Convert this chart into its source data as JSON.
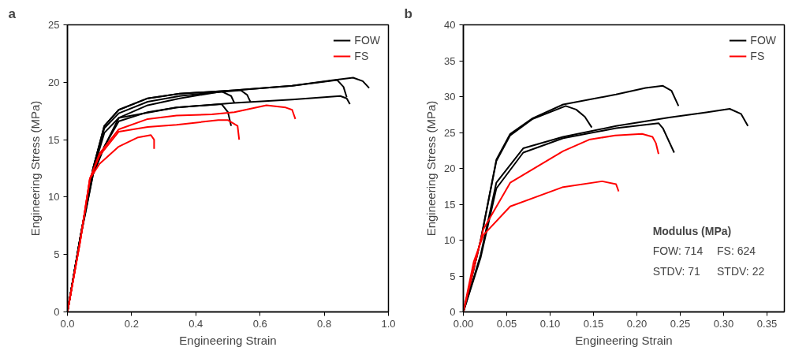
{
  "chart_data": [
    {
      "type": "line",
      "title": "a",
      "xlabel": "Engineering Strain",
      "ylabel": "Engineering Stress (MPa)",
      "xlim": [
        0,
        1.0
      ],
      "ylim": [
        0,
        25
      ],
      "xticks": [
        {
          "value": 0,
          "label": "0.0"
        },
        0.2,
        0.4,
        0.6,
        0.8,
        {
          "value": 1.0,
          "label": "1.0"
        }
      ],
      "yticks": [
        0,
        5,
        10,
        15,
        20,
        25
      ],
      "grid": false,
      "legend": "top right",
      "series": [
        {
          "name": "FOW",
          "color": "#000000",
          "x": [
            0,
            0.04,
            0.08,
            0.115,
            0.16,
            0.25,
            0.35,
            0.52,
            0.7,
            0.83,
            0.89,
            0.92,
            0.94
          ],
          "values": [
            0,
            6.5,
            12.5,
            16.2,
            17.6,
            18.6,
            19.0,
            19.3,
            19.7,
            20.2,
            20.4,
            20.1,
            19.5
          ]
        },
        {
          "color": "#000000",
          "x": [
            0,
            0.04,
            0.08,
            0.115,
            0.16,
            0.25,
            0.35,
            0.52,
            0.7,
            0.84,
            0.86,
            0.87
          ],
          "values": [
            0,
            6.5,
            12.5,
            16.2,
            17.6,
            18.6,
            19.0,
            19.3,
            19.7,
            20.2,
            19.6,
            18.7
          ]
        },
        {
          "color": "#000000",
          "x": [
            0,
            0.04,
            0.08,
            0.115,
            0.16,
            0.34,
            0.52,
            0.7,
            0.85,
            0.87,
            0.88
          ],
          "values": [
            0,
            6.4,
            12.0,
            14.4,
            16.9,
            17.8,
            18.2,
            18.5,
            18.8,
            18.6,
            18.1
          ]
        },
        {
          "color": "#000000",
          "x": [
            0,
            0.04,
            0.08,
            0.115,
            0.16,
            0.25,
            0.35,
            0.45,
            0.54,
            0.56,
            0.57
          ],
          "values": [
            0,
            6.5,
            12.5,
            16.0,
            17.3,
            18.3,
            18.8,
            19.1,
            19.3,
            18.9,
            18.3
          ]
        },
        {
          "color": "#000000",
          "x": [
            0,
            0.04,
            0.08,
            0.115,
            0.16,
            0.25,
            0.35,
            0.48,
            0.51,
            0.52
          ],
          "values": [
            0,
            6.5,
            12.3,
            15.6,
            16.9,
            18.0,
            18.6,
            19.2,
            18.8,
            18.2
          ]
        },
        {
          "color": "#000000",
          "x": [
            0,
            0.04,
            0.08,
            0.115,
            0.16,
            0.25,
            0.34,
            0.48,
            0.5,
            0.51
          ],
          "values": [
            0,
            6.4,
            12.0,
            14.4,
            16.6,
            17.4,
            17.8,
            18.1,
            17.4,
            16.2
          ]
        },
        {
          "name": "FS",
          "color": "#ff0000",
          "x": [
            0,
            0.04,
            0.07,
            0.1,
            0.16,
            0.25,
            0.34,
            0.45,
            0.52,
            0.62,
            0.68,
            0.7,
            0.71
          ],
          "values": [
            0,
            6.2,
            11.6,
            13.8,
            15.9,
            16.8,
            17.1,
            17.2,
            17.4,
            18.0,
            17.8,
            17.6,
            16.8
          ]
        },
        {
          "color": "#ff0000",
          "x": [
            0,
            0.04,
            0.07,
            0.1,
            0.16,
            0.25,
            0.34,
            0.47,
            0.5,
            0.53,
            0.535
          ],
          "values": [
            0,
            6.2,
            11.6,
            13.6,
            15.7,
            16.1,
            16.3,
            16.7,
            16.7,
            16.2,
            15.0
          ]
        },
        {
          "color": "#ff0000",
          "x": [
            0,
            0.04,
            0.07,
            0.1,
            0.16,
            0.22,
            0.26,
            0.27,
            0.27
          ],
          "values": [
            0,
            6.2,
            11.6,
            12.9,
            14.4,
            15.2,
            15.4,
            15.0,
            14.2
          ]
        }
      ]
    },
    {
      "type": "line",
      "title": "b",
      "xlabel": "Engineering Strain",
      "ylabel": "Engineering Stress (MPa)",
      "xlim": [
        0,
        0.37
      ],
      "ylim": [
        0,
        40
      ],
      "xticks": [
        {
          "value": 0,
          "label": "0.00"
        },
        {
          "value": 0.05,
          "label": "0.05"
        },
        {
          "value": 0.1,
          "label": "0.10"
        },
        {
          "value": 0.15,
          "label": "0.15"
        },
        {
          "value": 0.2,
          "label": "0.20"
        },
        {
          "value": 0.25,
          "label": "0.25"
        },
        {
          "value": 0.3,
          "label": "0.30"
        },
        {
          "value": 0.35,
          "label": "0.35"
        }
      ],
      "yticks": [
        0,
        5,
        10,
        15,
        20,
        25,
        30,
        35,
        40
      ],
      "grid": false,
      "legend": "top right",
      "annotations": [
        "Modulus (MPa)",
        "FOW: 714",
        "FS: 624",
        "STDV: 71",
        "STDV: 22"
      ],
      "series": [
        {
          "name": "FOW",
          "color": "#000000",
          "x": [
            0,
            0.02,
            0.038,
            0.054,
            0.08,
            0.115,
            0.176,
            0.21,
            0.23,
            0.24,
            0.248
          ],
          "values": [
            0,
            10,
            21.2,
            24.8,
            27.0,
            28.9,
            30.3,
            31.2,
            31.5,
            30.8,
            28.7
          ]
        },
        {
          "color": "#000000",
          "x": [
            0,
            0.02,
            0.038,
            0.054,
            0.08,
            0.118,
            0.13,
            0.14,
            0.148
          ],
          "values": [
            0,
            10,
            21.0,
            24.6,
            26.9,
            28.7,
            28.2,
            27.2,
            25.7
          ]
        },
        {
          "color": "#000000",
          "x": [
            0,
            0.02,
            0.038,
            0.069,
            0.115,
            0.176,
            0.237,
            0.28,
            0.307,
            0.32,
            0.328
          ],
          "values": [
            0,
            8,
            18.0,
            22.8,
            24.4,
            25.9,
            27.1,
            27.8,
            28.3,
            27.6,
            25.9
          ]
        },
        {
          "color": "#000000",
          "x": [
            0,
            0.02,
            0.038,
            0.069,
            0.115,
            0.176,
            0.225,
            0.23,
            0.243
          ],
          "values": [
            0,
            7.6,
            17.2,
            22.2,
            24.2,
            25.6,
            26.3,
            25.6,
            22.2
          ]
        },
        {
          "name": "FS",
          "color": "#ff0000",
          "x": [
            0,
            0.023,
            0.054,
            0.115,
            0.145,
            0.175,
            0.206,
            0.218,
            0.222,
            0.225
          ],
          "values": [
            0,
            11.5,
            18.0,
            22.4,
            24.0,
            24.6,
            24.8,
            24.4,
            23.5,
            22.0
          ]
        },
        {
          "color": "#ff0000",
          "x": [
            0,
            0.012,
            0.023,
            0.054,
            0.115,
            0.16,
            0.176,
            0.179
          ],
          "values": [
            0,
            7,
            10.7,
            14.7,
            17.4,
            18.2,
            17.8,
            16.8
          ]
        }
      ]
    }
  ]
}
